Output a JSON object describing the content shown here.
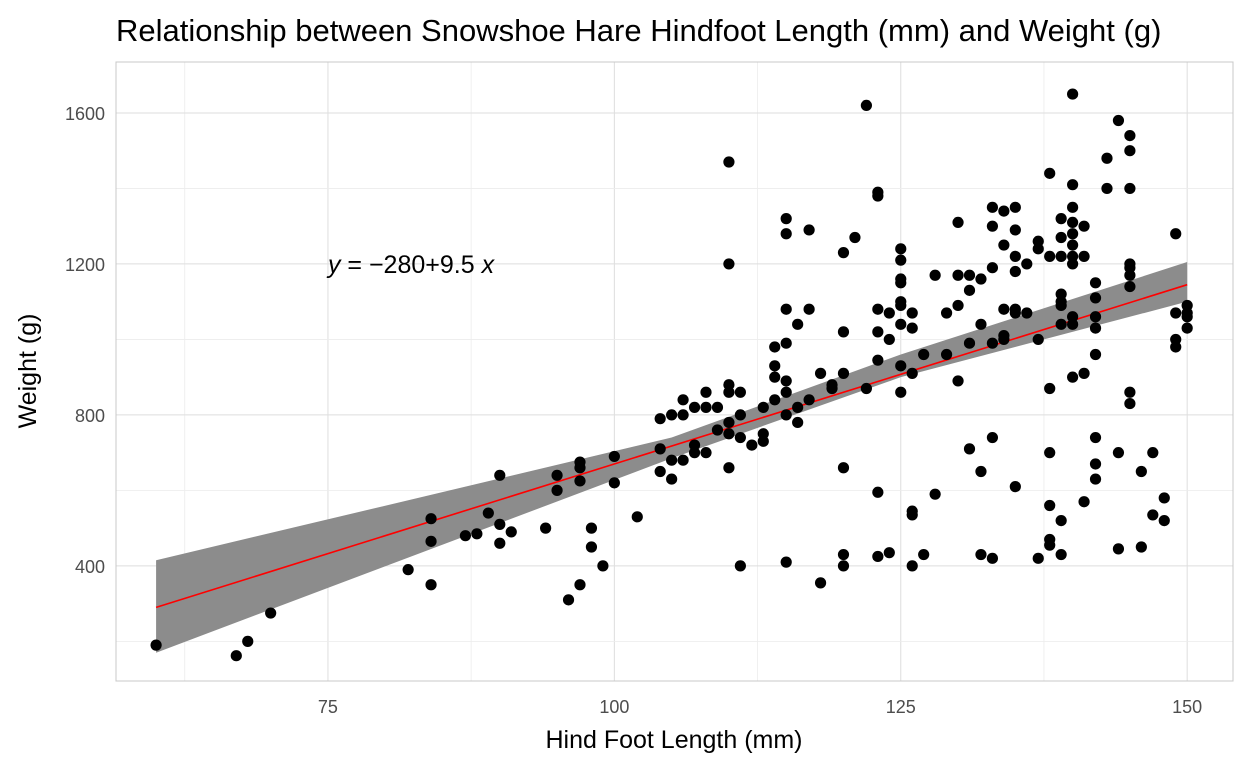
{
  "chart_data": {
    "type": "scatter",
    "title": "Relationship between Snowshoe Hare Hindfoot Length (mm) and Weight (g)",
    "xlabel": "Hind Foot Length (mm)",
    "ylabel": "Weight (g)",
    "xlim": [
      56.5,
      154
    ],
    "ylim": [
      95,
      1735
    ],
    "x_ticks": [
      75,
      100,
      125,
      150
    ],
    "y_ticks": [
      400,
      800,
      1200,
      1600
    ],
    "grid": true,
    "theme": "light",
    "annotation": {
      "text": "y = −280 + 9.5 x",
      "parts": [
        "y",
        " = ",
        "−",
        "280",
        "+",
        "9.5",
        " ",
        "x"
      ],
      "x": 75,
      "y": 1200
    },
    "regression": {
      "intercept": -280,
      "slope": 9.5,
      "x_range": [
        60,
        150
      ],
      "ci_lower": [
        [
          60,
          170
        ],
        [
          105,
          685
        ],
        [
          125,
          900
        ],
        [
          150,
          1100
        ]
      ],
      "ci_upper": [
        [
          60,
          415
        ],
        [
          105,
          740
        ],
        [
          125,
          960
        ],
        [
          150,
          1205
        ]
      ],
      "line_color": "#ff0000",
      "band_color": "#8c8c8c"
    },
    "point_color": "#000000",
    "points": [
      [
        60,
        190
      ],
      [
        67,
        162
      ],
      [
        68,
        200
      ],
      [
        70,
        275
      ],
      [
        82,
        390
      ],
      [
        84,
        350
      ],
      [
        84,
        465
      ],
      [
        84,
        525
      ],
      [
        87,
        480
      ],
      [
        88,
        485
      ],
      [
        89,
        540
      ],
      [
        90,
        510
      ],
      [
        90,
        460
      ],
      [
        90,
        640
      ],
      [
        91,
        490
      ],
      [
        94,
        500
      ],
      [
        95,
        600
      ],
      [
        95,
        640
      ],
      [
        96,
        310
      ],
      [
        97,
        350
      ],
      [
        97,
        625
      ],
      [
        97,
        660
      ],
      [
        97,
        675
      ],
      [
        98,
        450
      ],
      [
        98,
        500
      ],
      [
        99,
        400
      ],
      [
        100,
        620
      ],
      [
        100,
        690
      ],
      [
        102,
        530
      ],
      [
        104,
        650
      ],
      [
        104,
        710
      ],
      [
        104,
        790
      ],
      [
        105,
        630
      ],
      [
        105,
        680
      ],
      [
        105,
        800
      ],
      [
        106,
        680
      ],
      [
        106,
        800
      ],
      [
        106,
        840
      ],
      [
        107,
        700
      ],
      [
        107,
        720
      ],
      [
        107,
        820
      ],
      [
        108,
        700
      ],
      [
        108,
        820
      ],
      [
        108,
        860
      ],
      [
        109,
        820
      ],
      [
        109,
        760
      ],
      [
        110,
        660
      ],
      [
        110,
        750
      ],
      [
        110,
        780
      ],
      [
        110,
        860
      ],
      [
        110,
        880
      ],
      [
        110,
        1200
      ],
      [
        110,
        1470
      ],
      [
        111,
        400
      ],
      [
        111,
        740
      ],
      [
        111,
        800
      ],
      [
        111,
        860
      ],
      [
        112,
        720
      ],
      [
        113,
        730
      ],
      [
        113,
        750
      ],
      [
        113,
        820
      ],
      [
        114,
        840
      ],
      [
        114,
        900
      ],
      [
        114,
        930
      ],
      [
        114,
        980
      ],
      [
        115,
        410
      ],
      [
        115,
        800
      ],
      [
        115,
        860
      ],
      [
        115,
        890
      ],
      [
        115,
        990
      ],
      [
        115,
        1080
      ],
      [
        115,
        1280
      ],
      [
        115,
        1320
      ],
      [
        116,
        780
      ],
      [
        116,
        1040
      ],
      [
        116,
        820
      ],
      [
        117,
        840
      ],
      [
        117,
        1080
      ],
      [
        117,
        1290
      ],
      [
        118,
        355
      ],
      [
        118,
        910
      ],
      [
        119,
        870
      ],
      [
        119,
        880
      ],
      [
        120,
        400
      ],
      [
        120,
        430
      ],
      [
        120,
        660
      ],
      [
        120,
        910
      ],
      [
        120,
        1020
      ],
      [
        120,
        1230
      ],
      [
        121,
        1270
      ],
      [
        122,
        870
      ],
      [
        122,
        1620
      ],
      [
        123,
        425
      ],
      [
        123,
        595
      ],
      [
        123,
        945
      ],
      [
        123,
        1020
      ],
      [
        123,
        1080
      ],
      [
        123,
        1380
      ],
      [
        123,
        1390
      ],
      [
        124,
        435
      ],
      [
        124,
        1000
      ],
      [
        124,
        1070
      ],
      [
        125,
        860
      ],
      [
        125,
        930
      ],
      [
        125,
        1040
      ],
      [
        125,
        1090
      ],
      [
        125,
        1100
      ],
      [
        125,
        1150
      ],
      [
        125,
        1160
      ],
      [
        125,
        1210
      ],
      [
        125,
        1240
      ],
      [
        126,
        400
      ],
      [
        126,
        535
      ],
      [
        126,
        545
      ],
      [
        126,
        910
      ],
      [
        126,
        1030
      ],
      [
        126,
        1070
      ],
      [
        127,
        430
      ],
      [
        127,
        960
      ],
      [
        128,
        590
      ],
      [
        128,
        1170
      ],
      [
        129,
        960
      ],
      [
        129,
        1070
      ],
      [
        130,
        890
      ],
      [
        130,
        1090
      ],
      [
        130,
        1170
      ],
      [
        130,
        1310
      ],
      [
        131,
        710
      ],
      [
        131,
        990
      ],
      [
        131,
        1130
      ],
      [
        131,
        1170
      ],
      [
        132,
        430
      ],
      [
        132,
        650
      ],
      [
        132,
        1040
      ],
      [
        132,
        1160
      ],
      [
        133,
        420
      ],
      [
        133,
        740
      ],
      [
        133,
        990
      ],
      [
        133,
        1190
      ],
      [
        133,
        1300
      ],
      [
        133,
        1350
      ],
      [
        134,
        1000
      ],
      [
        134,
        1010
      ],
      [
        134,
        1080
      ],
      [
        134,
        1250
      ],
      [
        134,
        1340
      ],
      [
        135,
        610
      ],
      [
        135,
        1070
      ],
      [
        135,
        1080
      ],
      [
        135,
        1180
      ],
      [
        135,
        1220
      ],
      [
        135,
        1290
      ],
      [
        135,
        1350
      ],
      [
        136,
        1070
      ],
      [
        136,
        1200
      ],
      [
        137,
        420
      ],
      [
        137,
        1000
      ],
      [
        137,
        1240
      ],
      [
        137,
        1260
      ],
      [
        138,
        455
      ],
      [
        138,
        470
      ],
      [
        138,
        560
      ],
      [
        138,
        700
      ],
      [
        138,
        870
      ],
      [
        138,
        1220
      ],
      [
        138,
        1440
      ],
      [
        139,
        430
      ],
      [
        139,
        520
      ],
      [
        139,
        1040
      ],
      [
        139,
        1090
      ],
      [
        139,
        1100
      ],
      [
        139,
        1120
      ],
      [
        139,
        1220
      ],
      [
        139,
        1270
      ],
      [
        139,
        1320
      ],
      [
        140,
        900
      ],
      [
        140,
        1040
      ],
      [
        140,
        1060
      ],
      [
        140,
        1200
      ],
      [
        140,
        1220
      ],
      [
        140,
        1250
      ],
      [
        140,
        1280
      ],
      [
        140,
        1310
      ],
      [
        140,
        1350
      ],
      [
        140,
        1410
      ],
      [
        140,
        1650
      ],
      [
        141,
        570
      ],
      [
        141,
        910
      ],
      [
        141,
        1220
      ],
      [
        141,
        1300
      ],
      [
        142,
        630
      ],
      [
        142,
        670
      ],
      [
        142,
        740
      ],
      [
        142,
        960
      ],
      [
        142,
        1030
      ],
      [
        142,
        1060
      ],
      [
        142,
        1110
      ],
      [
        142,
        1150
      ],
      [
        143,
        1400
      ],
      [
        143,
        1480
      ],
      [
        144,
        445
      ],
      [
        144,
        700
      ],
      [
        144,
        1580
      ],
      [
        145,
        830
      ],
      [
        145,
        860
      ],
      [
        145,
        1140
      ],
      [
        145,
        1170
      ],
      [
        145,
        1190
      ],
      [
        145,
        1200
      ],
      [
        145,
        1400
      ],
      [
        145,
        1500
      ],
      [
        145,
        1540
      ],
      [
        146,
        450
      ],
      [
        146,
        650
      ],
      [
        147,
        535
      ],
      [
        147,
        700
      ],
      [
        148,
        520
      ],
      [
        148,
        580
      ],
      [
        149,
        980
      ],
      [
        149,
        1000
      ],
      [
        149,
        1070
      ],
      [
        149,
        1280
      ],
      [
        150,
        1030
      ],
      [
        150,
        1060
      ],
      [
        150,
        1070
      ],
      [
        150,
        1090
      ]
    ]
  }
}
